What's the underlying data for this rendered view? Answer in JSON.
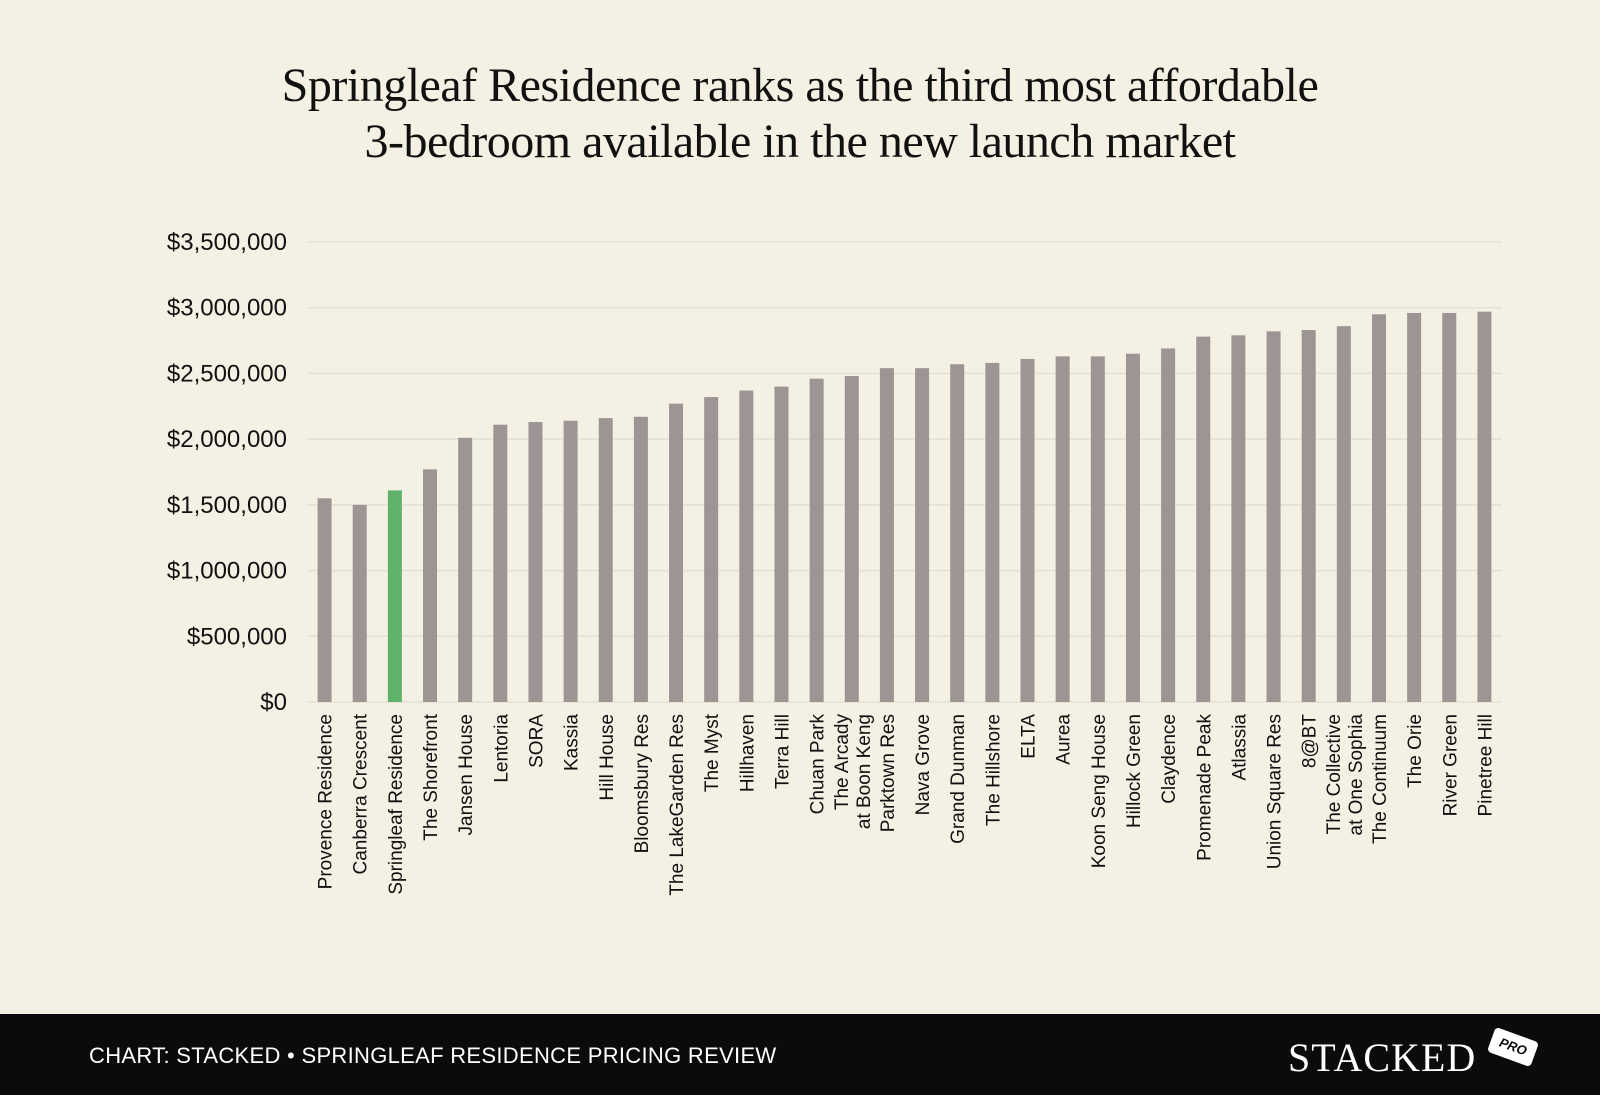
{
  "title": {
    "line1": "Springleaf Residence ranks as the third most affordable",
    "line2": "3-bedroom available in the new launch market"
  },
  "footer": {
    "caption": "CHART: STACKED • SPRINGLEAF RESIDENCE PRICING REVIEW",
    "logo_text": "STACKED",
    "logo_badge": "PRO"
  },
  "colors": {
    "background": "#f4f0e4",
    "bar": "#9c9593",
    "highlight": "#5fb26a",
    "gridline": "#e3dfd3",
    "footer_bg": "#0b0b0b"
  },
  "chart_data": {
    "type": "bar",
    "title": "Springleaf Residence ranks as the third most affordable 3-bedroom available in the new launch market",
    "xlabel": "",
    "ylabel": "",
    "ylim": [
      0,
      3500000
    ],
    "yticks": [
      0,
      500000,
      1000000,
      1500000,
      2000000,
      2500000,
      3000000,
      3500000
    ],
    "ytick_labels": [
      "$0",
      "$500,000",
      "$1,000,000",
      "$1,500,000",
      "$2,000,000",
      "$2,500,000",
      "$3,000,000",
      "$3,500,000"
    ],
    "grid": true,
    "legend": "none",
    "highlight_category": "Springleaf Residence",
    "categories": [
      "Provence Residence",
      "Canberra Crescent",
      "Springleaf Residence",
      "The Shorefront",
      "Jansen House",
      "Lentoria",
      "SORA",
      "Kassia",
      "Hill House",
      "Bloomsbury Res",
      "The LakeGarden Res",
      "The Myst",
      "Hillhaven",
      "Terra Hill",
      "Chuan Park",
      "The Arcady at Boon Keng",
      "Parktown Res",
      "Nava Grove",
      "Grand Dunman",
      "The Hillshore",
      "ELTA",
      "Aurea",
      "Koon Seng House",
      "Hillock Green",
      "Claydence",
      "Promenade Peak",
      "Atlassia",
      "Union Square Res",
      "8@BT",
      "The Collective at One Sophia",
      "The Continuum",
      "The Orie",
      "River Green",
      "Pinetree Hill"
    ],
    "category_lines": [
      [
        "Provence Residence"
      ],
      [
        "Canberra Crescent"
      ],
      [
        "Springleaf Residence"
      ],
      [
        "The Shorefront"
      ],
      [
        "Jansen House"
      ],
      [
        "Lentoria"
      ],
      [
        "SORA"
      ],
      [
        "Kassia"
      ],
      [
        "Hill House"
      ],
      [
        "Bloomsbury Res"
      ],
      [
        "The LakeGarden Res"
      ],
      [
        "The Myst"
      ],
      [
        "Hillhaven"
      ],
      [
        "Terra Hill"
      ],
      [
        "Chuan Park"
      ],
      [
        "The Arcady",
        "at Boon Keng"
      ],
      [
        "Parktown Res"
      ],
      [
        "Nava Grove"
      ],
      [
        "Grand Dunman"
      ],
      [
        "The Hillshore"
      ],
      [
        "ELTA"
      ],
      [
        "Aurea"
      ],
      [
        "Koon Seng House"
      ],
      [
        "Hillock Green"
      ],
      [
        "Claydence"
      ],
      [
        "Promenade Peak"
      ],
      [
        "Atlassia"
      ],
      [
        "Union Square Res"
      ],
      [
        "8@BT"
      ],
      [
        "The Collective",
        "at One Sophia"
      ],
      [
        "The Continuum"
      ],
      [
        "The Orie"
      ],
      [
        "River Green"
      ],
      [
        "Pinetree Hill"
      ]
    ],
    "values": [
      1550000,
      1500000,
      1610000,
      1770000,
      2010000,
      2110000,
      2130000,
      2140000,
      2160000,
      2170000,
      2270000,
      2320000,
      2370000,
      2400000,
      2460000,
      2480000,
      2540000,
      2540000,
      2570000,
      2580000,
      2610000,
      2630000,
      2630000,
      2650000,
      2690000,
      2780000,
      2790000,
      2820000,
      2830000,
      2860000,
      2950000,
      2960000,
      2960000,
      2970000
    ]
  }
}
